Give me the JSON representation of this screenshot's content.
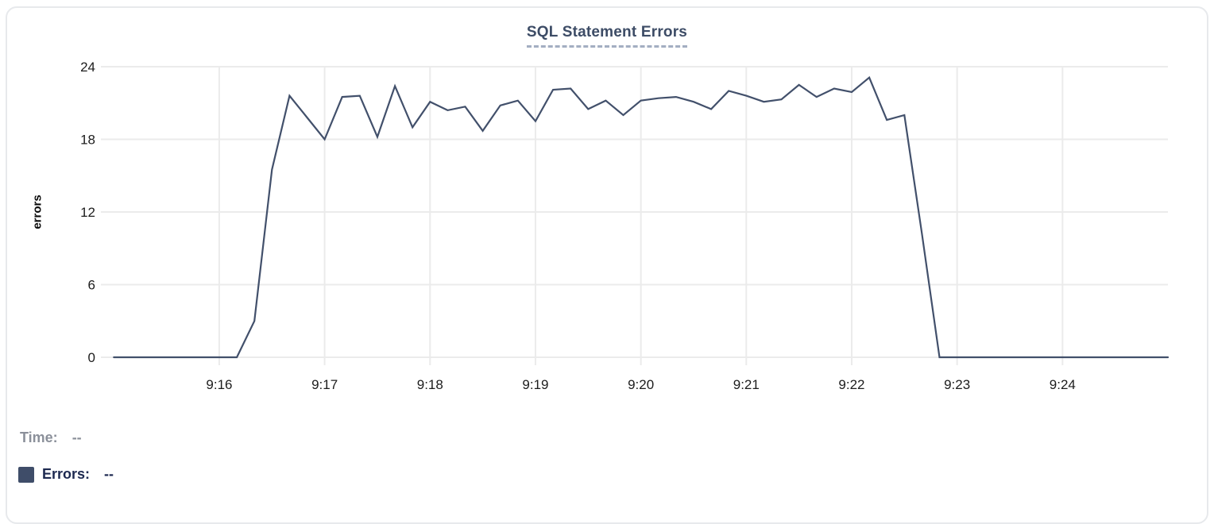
{
  "colors": {
    "line": "#42506b",
    "grid": "#ebebeb",
    "axis_text": "#1c1c1c",
    "title": "#3d4c66",
    "title_underline": "#a3aec2",
    "time_text": "#8b909a",
    "errors_text": "#1d2950",
    "swatch": "#3f4d69",
    "card_border": "#e7e9ec"
  },
  "tooltip": {
    "time_label": "Time:",
    "time_value": "--",
    "errors_label": "Errors:",
    "errors_value": "--"
  },
  "chart_data": {
    "type": "line",
    "title": "SQL Statement Errors",
    "xlabel": "",
    "ylabel": "errors",
    "ylim": [
      0,
      24
    ],
    "y_ticks": [
      0,
      6,
      12,
      18,
      24
    ],
    "x_ticks": [
      "9:16",
      "9:17",
      "9:18",
      "9:19",
      "9:20",
      "9:21",
      "9:22",
      "9:23",
      "9:24"
    ],
    "x_domain": [
      "9:14:54",
      "9:25:00"
    ],
    "grid": true,
    "legend_position": "bottom-left",
    "series": [
      {
        "name": "Errors",
        "color": "#42506b",
        "points": [
          [
            "9:15:00",
            0
          ],
          [
            "9:15:10",
            0
          ],
          [
            "9:15:20",
            0
          ],
          [
            "9:15:30",
            0
          ],
          [
            "9:15:40",
            0
          ],
          [
            "9:15:50",
            0
          ],
          [
            "9:16:00",
            0
          ],
          [
            "9:16:10",
            0
          ],
          [
            "9:16:20",
            3
          ],
          [
            "9:16:30",
            15.5
          ],
          [
            "9:16:40",
            21.6
          ],
          [
            "9:16:50",
            19.8
          ],
          [
            "9:17:00",
            18
          ],
          [
            "9:17:10",
            21.5
          ],
          [
            "9:17:20",
            21.6
          ],
          [
            "9:17:30",
            18.2
          ],
          [
            "9:17:40",
            22.4
          ],
          [
            "9:17:50",
            19
          ],
          [
            "9:18:00",
            21.1
          ],
          [
            "9:18:10",
            20.4
          ],
          [
            "9:18:20",
            20.7
          ],
          [
            "9:18:30",
            18.7
          ],
          [
            "9:18:40",
            20.8
          ],
          [
            "9:18:50",
            21.2
          ],
          [
            "9:19:00",
            19.5
          ],
          [
            "9:19:10",
            22.1
          ],
          [
            "9:19:20",
            22.2
          ],
          [
            "9:19:30",
            20.5
          ],
          [
            "9:19:40",
            21.2
          ],
          [
            "9:19:50",
            20
          ],
          [
            "9:20:00",
            21.2
          ],
          [
            "9:20:10",
            21.4
          ],
          [
            "9:20:20",
            21.5
          ],
          [
            "9:20:30",
            21.1
          ],
          [
            "9:20:40",
            20.5
          ],
          [
            "9:20:50",
            22
          ],
          [
            "9:21:00",
            21.6
          ],
          [
            "9:21:10",
            21.1
          ],
          [
            "9:21:20",
            21.3
          ],
          [
            "9:21:30",
            22.5
          ],
          [
            "9:21:40",
            21.5
          ],
          [
            "9:21:50",
            22.2
          ],
          [
            "9:22:00",
            21.9
          ],
          [
            "9:22:10",
            23.1
          ],
          [
            "9:22:20",
            19.6
          ],
          [
            "9:22:30",
            20
          ],
          [
            "9:22:40",
            10.2
          ],
          [
            "9:22:50",
            0
          ],
          [
            "9:23:00",
            0
          ],
          [
            "9:23:10",
            0
          ],
          [
            "9:23:20",
            0
          ],
          [
            "9:23:30",
            0
          ],
          [
            "9:23:40",
            0
          ],
          [
            "9:23:50",
            0
          ],
          [
            "9:24:00",
            0
          ],
          [
            "9:24:10",
            0
          ],
          [
            "9:24:20",
            0
          ],
          [
            "9:24:30",
            0
          ],
          [
            "9:24:40",
            0
          ],
          [
            "9:24:50",
            0
          ],
          [
            "9:25:00",
            0
          ]
        ]
      }
    ]
  }
}
